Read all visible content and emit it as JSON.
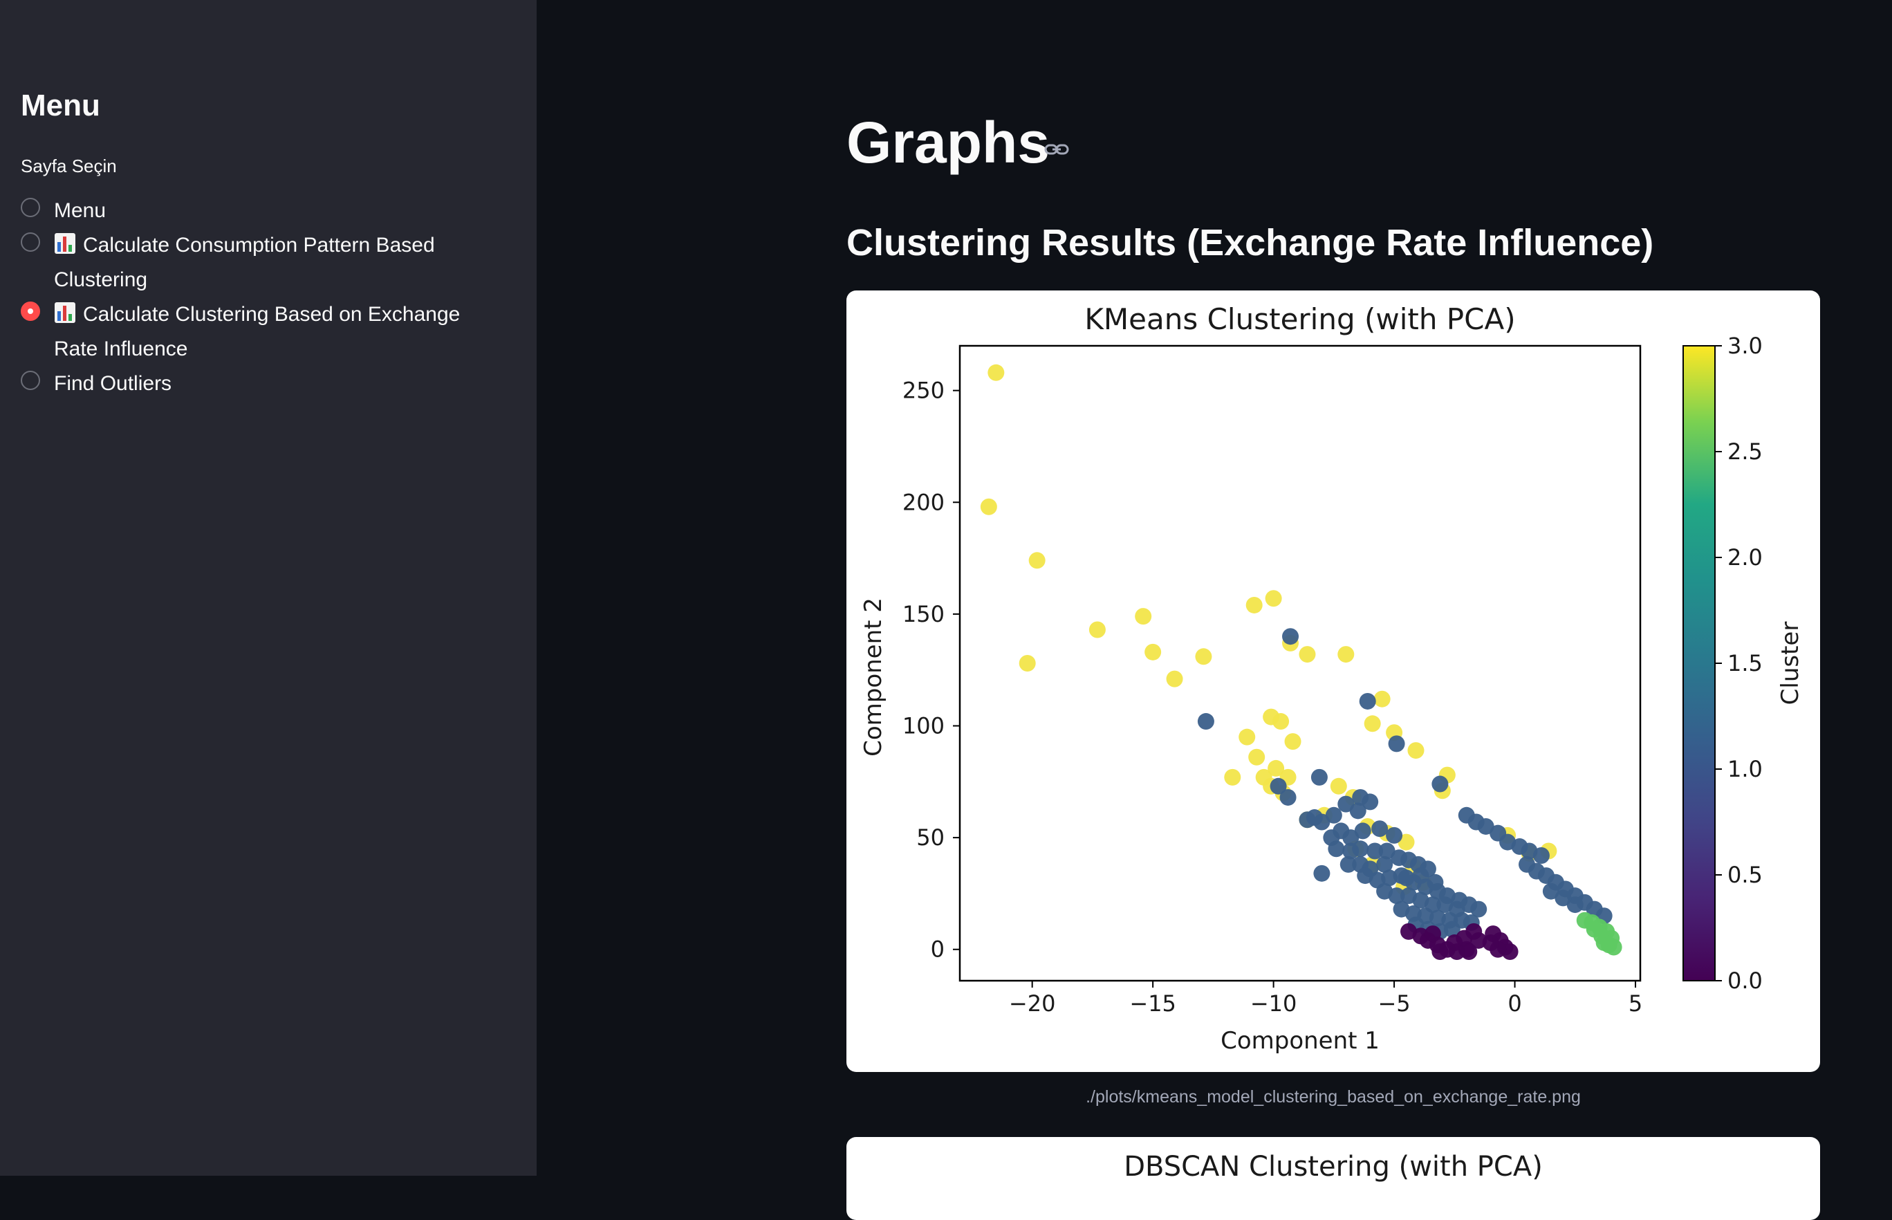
{
  "sidebar": {
    "title": "Menu",
    "select_label": "Sayfa Seçin",
    "options": [
      {
        "label": "Menu",
        "emoji": false,
        "checked": false
      },
      {
        "label": "Calculate Consumption Pattern Based Clustering",
        "emoji": true,
        "checked": false
      },
      {
        "label": "Calculate Clustering Based on Exchange Rate Influence",
        "emoji": true,
        "checked": true
      },
      {
        "label": "Find Outliers",
        "emoji": false,
        "checked": false
      }
    ]
  },
  "main": {
    "title": "Graphs",
    "subheader": "Clustering Results (Exchange Rate Influence)",
    "image_caption": "./plots/kmeans_model_clustering_based_on_exchange_rate.png",
    "next_plot_title": "DBSCAN Clustering (with PCA)"
  },
  "colors": {
    "accent": "#ff4b4b",
    "background": "#0e1117",
    "sidebar": "#262730",
    "cluster_0": "#440154",
    "cluster_1": "#3b5f8a",
    "cluster_2": "#5ec962",
    "cluster_3": "#f2e54a"
  },
  "chart_data": {
    "type": "scatter",
    "title": "KMeans Clustering (with PCA)",
    "xlabel": "Component 1",
    "ylabel": "Component 2",
    "xlim": [
      -23,
      5.2
    ],
    "ylim": [
      -14,
      270
    ],
    "xticks": [
      -20,
      -15,
      -10,
      -5,
      0,
      5
    ],
    "yticks": [
      0,
      50,
      100,
      150,
      200,
      250
    ],
    "colorbar": {
      "label": "Cluster",
      "ticks": [
        0.0,
        0.5,
        1.0,
        1.5,
        2.0,
        2.5,
        3.0
      ],
      "colormap": "viridis"
    },
    "grid": false,
    "series": [
      {
        "cluster": 3,
        "points": [
          [
            -21.5,
            258
          ],
          [
            -21.8,
            198
          ],
          [
            -19.8,
            174
          ],
          [
            -20.2,
            128
          ],
          [
            -17.3,
            143
          ],
          [
            -15.4,
            149
          ],
          [
            -15,
            133
          ],
          [
            -14.1,
            121
          ],
          [
            -12.9,
            131
          ],
          [
            -10.8,
            154
          ],
          [
            -10,
            157
          ],
          [
            -9.3,
            137
          ],
          [
            -8.6,
            132
          ],
          [
            -7,
            132
          ],
          [
            -5.5,
            112
          ],
          [
            -5.9,
            101
          ],
          [
            -5,
            97
          ],
          [
            -4.1,
            89
          ],
          [
            -2.8,
            78
          ],
          [
            -3,
            71
          ],
          [
            -10.1,
            104
          ],
          [
            -9.7,
            102
          ],
          [
            -11.1,
            95
          ],
          [
            -10.7,
            86
          ],
          [
            -10.4,
            77
          ],
          [
            -9.9,
            81
          ],
          [
            -9.4,
            77
          ],
          [
            -9.2,
            93
          ],
          [
            -9.6,
            70
          ],
          [
            -10.1,
            73
          ],
          [
            -11.7,
            77
          ],
          [
            -7.3,
            73
          ],
          [
            -6.7,
            68
          ],
          [
            -7.9,
            60
          ],
          [
            -6.1,
            55
          ],
          [
            -5.3,
            52
          ],
          [
            -4.5,
            48
          ],
          [
            -8.6,
            58
          ],
          [
            -4.2,
            37
          ],
          [
            -3.8,
            30
          ],
          [
            -4.6,
            28
          ],
          [
            -5.9,
            38
          ],
          [
            -6.6,
            45
          ],
          [
            -0.3,
            51
          ],
          [
            1.4,
            44
          ],
          [
            0.6,
            43
          ]
        ]
      },
      {
        "cluster": 1,
        "points": [
          [
            -9.3,
            140
          ],
          [
            -6.1,
            111
          ],
          [
            -12.8,
            102
          ],
          [
            -4.9,
            92
          ],
          [
            -3.1,
            74
          ],
          [
            -9.8,
            73
          ],
          [
            -9.4,
            68
          ],
          [
            -8.1,
            77
          ],
          [
            -8,
            34
          ],
          [
            -8.6,
            58
          ],
          [
            -8,
            57
          ],
          [
            -8.3,
            59
          ],
          [
            -7.5,
            60
          ],
          [
            -7,
            65
          ],
          [
            -6.5,
            62
          ],
          [
            -6.4,
            68
          ],
          [
            -6,
            66
          ],
          [
            -7.2,
            53
          ],
          [
            -7.6,
            50
          ],
          [
            -6.8,
            50
          ],
          [
            -6.3,
            53
          ],
          [
            -5.6,
            54
          ],
          [
            -5,
            51
          ],
          [
            -7.4,
            45
          ],
          [
            -6.8,
            44
          ],
          [
            -6.4,
            45
          ],
          [
            -5.8,
            44
          ],
          [
            -5.3,
            44
          ],
          [
            -6.9,
            38
          ],
          [
            -6.4,
            38
          ],
          [
            -6,
            36
          ],
          [
            -5.4,
            38
          ],
          [
            -4.8,
            41
          ],
          [
            -4.4,
            40
          ],
          [
            -4,
            38
          ],
          [
            -3.6,
            36
          ],
          [
            -6.2,
            33
          ],
          [
            -5.7,
            31
          ],
          [
            -5.2,
            32
          ],
          [
            -4.7,
            33
          ],
          [
            -4.2,
            30
          ],
          [
            -3.7,
            28
          ],
          [
            -3.2,
            26
          ],
          [
            -5.4,
            26
          ],
          [
            -4.9,
            24
          ],
          [
            -4.4,
            24
          ],
          [
            -3.9,
            22
          ],
          [
            -3.4,
            20
          ],
          [
            -2.9,
            20
          ],
          [
            -2.4,
            18
          ],
          [
            -4.7,
            18
          ],
          [
            -4.2,
            16
          ],
          [
            -3.7,
            15
          ],
          [
            -3.2,
            14
          ],
          [
            -2.7,
            13
          ],
          [
            -2.2,
            13
          ],
          [
            -1.8,
            12
          ],
          [
            -4.1,
            11
          ],
          [
            -3.6,
            9
          ],
          [
            -3.1,
            8
          ],
          [
            -2.6,
            9
          ],
          [
            -4.5,
            32
          ],
          [
            -3.9,
            33
          ],
          [
            -3.3,
            30
          ],
          [
            -2.8,
            24
          ],
          [
            -2.3,
            22
          ],
          [
            -1.9,
            20
          ],
          [
            -1.5,
            18
          ],
          [
            -2,
            60
          ],
          [
            -1.6,
            57
          ],
          [
            -1.2,
            55
          ],
          [
            -0.7,
            52
          ],
          [
            -0.3,
            48
          ],
          [
            0.2,
            46
          ],
          [
            0.6,
            44
          ],
          [
            1.1,
            42
          ],
          [
            0.5,
            38
          ],
          [
            0.9,
            35
          ],
          [
            1.3,
            33
          ],
          [
            1.7,
            30
          ],
          [
            2.1,
            27
          ],
          [
            2.5,
            24
          ],
          [
            2.9,
            21
          ],
          [
            3.3,
            18
          ],
          [
            3.7,
            15
          ],
          [
            2.5,
            20
          ],
          [
            2,
            23
          ],
          [
            1.5,
            26
          ]
        ]
      },
      {
        "cluster": 0,
        "points": [
          [
            -3.9,
            6
          ],
          [
            -3.6,
            4
          ],
          [
            -3.2,
            2
          ],
          [
            -2.8,
            0
          ],
          [
            -2.4,
            -1
          ],
          [
            -2,
            0
          ],
          [
            -2.5,
            3
          ],
          [
            -2.1,
            5
          ],
          [
            -1.7,
            8
          ],
          [
            -1.5,
            4
          ],
          [
            -1.9,
            -1
          ],
          [
            -3.1,
            -1
          ],
          [
            -0.9,
            7
          ],
          [
            -0.6,
            4
          ],
          [
            -0.4,
            1
          ],
          [
            -0.2,
            -1
          ],
          [
            -0.7,
            0
          ],
          [
            -1,
            3
          ],
          [
            -4.4,
            8
          ],
          [
            -3.4,
            7
          ]
        ]
      },
      {
        "cluster": 2,
        "points": [
          [
            3.2,
            12
          ],
          [
            3.5,
            10
          ],
          [
            3.8,
            8
          ],
          [
            4,
            5
          ],
          [
            3.7,
            3
          ],
          [
            4.1,
            1
          ],
          [
            3.6,
            6
          ],
          [
            3.3,
            9
          ],
          [
            3.9,
            2
          ],
          [
            2.9,
            13
          ]
        ]
      }
    ]
  }
}
